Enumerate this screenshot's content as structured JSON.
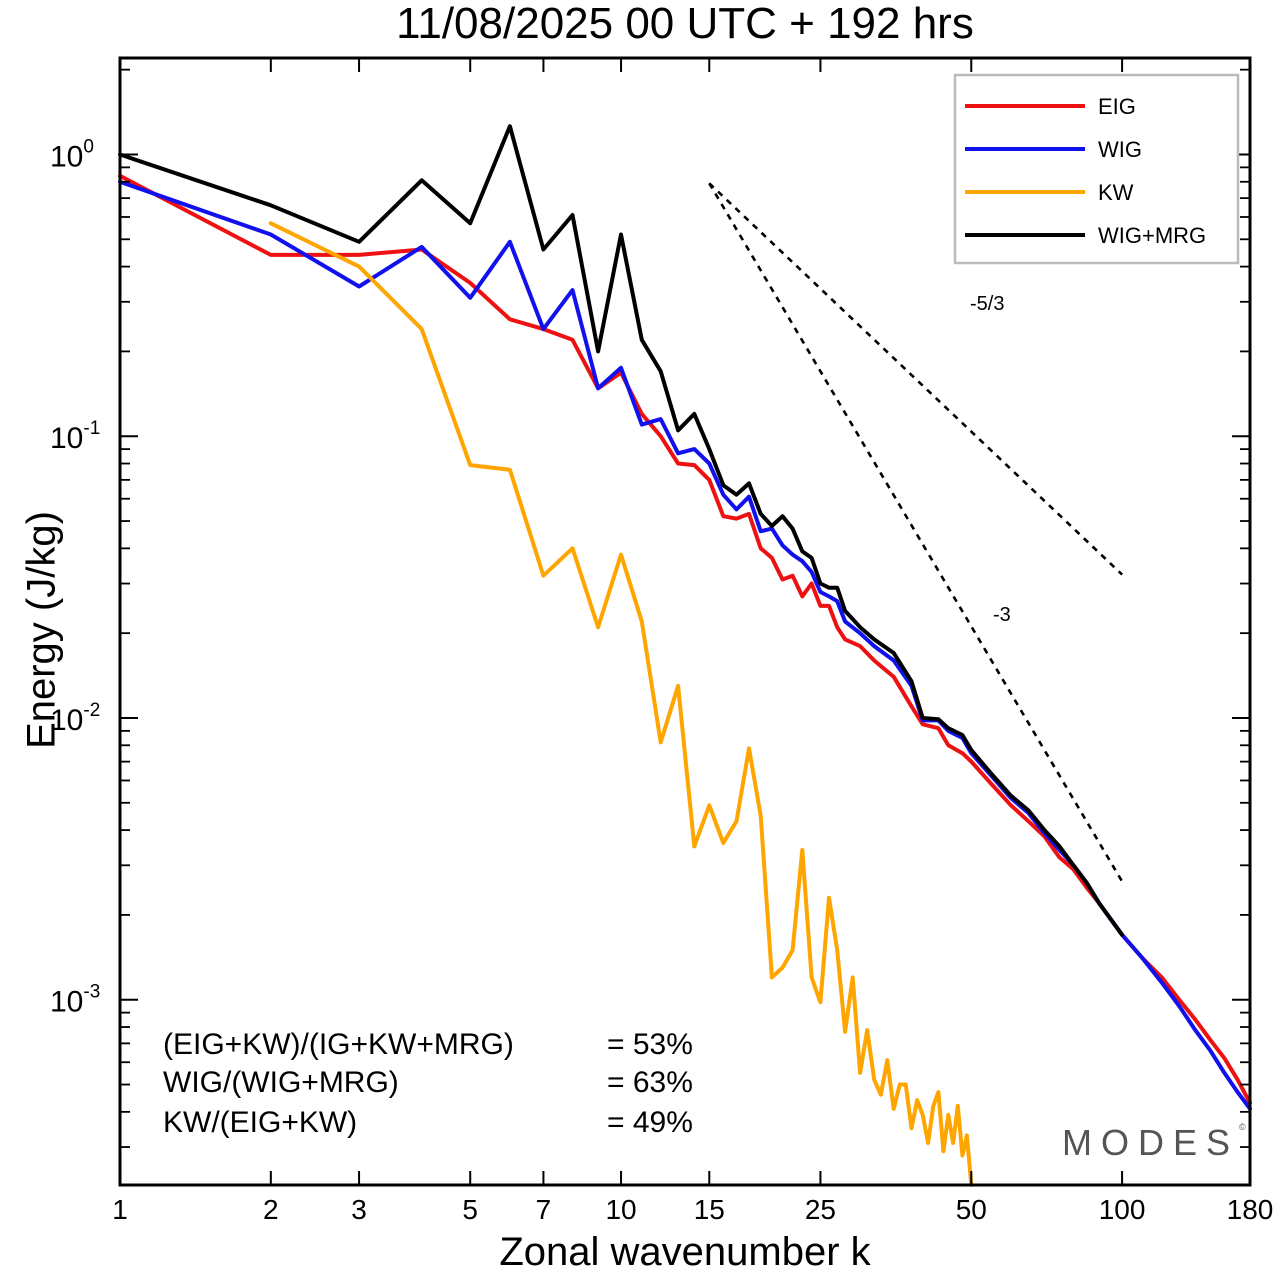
{
  "chart_data": {
    "type": "line",
    "title": "11/08/2025  00 UTC  + 192 hrs",
    "xlabel": "Zonal wavenumber k",
    "ylabel": "Energy (J/kg)",
    "xscale": "log",
    "yscale": "log",
    "xlim": [
      1,
      180
    ],
    "ylim": [
      0.00022,
      2.2
    ],
    "xticks": [
      1,
      2,
      3,
      5,
      7,
      10,
      15,
      25,
      50,
      100,
      180
    ],
    "xtick_labels": [
      "1",
      "2",
      "3",
      "5",
      "7",
      "10",
      "15",
      "25",
      "50",
      "100",
      "180"
    ],
    "yticks": [
      1,
      0.1,
      0.01,
      0.001
    ],
    "ytick_labels": [
      {
        "base": "10",
        "exp": "0"
      },
      {
        "base": "10",
        "exp": "-1"
      },
      {
        "base": "10",
        "exp": "-2"
      },
      {
        "base": "10",
        "exp": "-3"
      }
    ],
    "grid": false,
    "legend_position": "top-right",
    "series": [
      {
        "name": "EIG",
        "color": "#ee1111",
        "x": [
          1,
          2,
          3,
          4,
          5,
          6,
          7,
          8,
          9,
          10,
          11,
          12,
          13,
          14,
          15,
          16,
          17,
          18,
          19,
          20,
          21,
          22,
          23,
          24,
          25,
          26,
          27,
          28,
          30,
          32,
          35,
          38,
          40,
          43,
          45,
          48,
          50,
          55,
          60,
          65,
          70,
          75,
          80,
          85,
          90,
          100,
          110,
          120,
          130,
          140,
          150,
          160,
          170,
          180
        ],
        "values": [
          0.84,
          0.44,
          0.44,
          0.46,
          0.35,
          0.26,
          0.24,
          0.22,
          0.148,
          0.168,
          0.12,
          0.1,
          0.08,
          0.079,
          0.07,
          0.052,
          0.051,
          0.053,
          0.04,
          0.037,
          0.031,
          0.032,
          0.027,
          0.03,
          0.025,
          0.025,
          0.021,
          0.019,
          0.018,
          0.016,
          0.014,
          0.011,
          0.0095,
          0.0092,
          0.008,
          0.0075,
          0.007,
          0.0058,
          0.0049,
          0.0043,
          0.0038,
          0.0032,
          0.0029,
          0.0025,
          0.0022,
          0.0017,
          0.0014,
          0.0012,
          0.001,
          0.00085,
          0.00072,
          0.00062,
          0.00052,
          0.00043
        ]
      },
      {
        "name": "WIG",
        "color": "#1111ee",
        "x": [
          1,
          2,
          3,
          4,
          5,
          6,
          7,
          8,
          9,
          10,
          11,
          12,
          13,
          14,
          15,
          16,
          17,
          18,
          19,
          20,
          21,
          22,
          23,
          24,
          25,
          26,
          27,
          28,
          30,
          32,
          35,
          38,
          40,
          43,
          45,
          48,
          50,
          55,
          60,
          65,
          70,
          75,
          80,
          85,
          90,
          100,
          110,
          120,
          130,
          140,
          150,
          160,
          170,
          180
        ],
        "values": [
          0.8,
          0.52,
          0.34,
          0.47,
          0.31,
          0.49,
          0.24,
          0.33,
          0.148,
          0.175,
          0.11,
          0.115,
          0.087,
          0.09,
          0.08,
          0.062,
          0.055,
          0.061,
          0.046,
          0.047,
          0.041,
          0.038,
          0.036,
          0.033,
          0.028,
          0.027,
          0.026,
          0.022,
          0.02,
          0.018,
          0.016,
          0.013,
          0.0098,
          0.0098,
          0.009,
          0.0085,
          0.0075,
          0.0062,
          0.0052,
          0.0046,
          0.0039,
          0.0034,
          0.003,
          0.0026,
          0.0022,
          0.0017,
          0.0014,
          0.00115,
          0.00095,
          0.00078,
          0.00066,
          0.00055,
          0.00047,
          0.00041
        ]
      },
      {
        "name": "KW",
        "color": "#ffa500",
        "x": [
          2,
          3,
          4,
          5,
          6,
          7,
          8,
          9,
          10,
          11,
          12,
          13,
          14,
          15,
          16,
          17,
          18,
          19,
          20,
          21,
          22,
          23,
          24,
          25,
          26,
          27,
          28,
          29,
          30,
          31,
          32,
          33,
          34,
          35,
          36,
          37,
          38,
          39,
          40,
          41,
          42,
          43,
          44,
          45,
          46,
          47,
          48,
          49,
          50
        ],
        "values": [
          0.57,
          0.4,
          0.24,
          0.079,
          0.076,
          0.032,
          0.04,
          0.021,
          0.038,
          0.022,
          0.0082,
          0.013,
          0.0035,
          0.0049,
          0.0036,
          0.0043,
          0.0078,
          0.0045,
          0.0012,
          0.0013,
          0.0015,
          0.0034,
          0.0012,
          0.00098,
          0.0023,
          0.0015,
          0.00077,
          0.0012,
          0.00055,
          0.00078,
          0.00052,
          0.00046,
          0.00061,
          0.00041,
          0.0005,
          0.0005,
          0.00035,
          0.00044,
          0.00039,
          0.00031,
          0.00042,
          0.00047,
          0.00029,
          0.00039,
          0.00031,
          0.00042,
          0.00028,
          0.00033,
          0.00022
        ]
      },
      {
        "name": "WIG+MRG",
        "color": "#000000",
        "x": [
          1,
          2,
          3,
          4,
          5,
          6,
          7,
          8,
          9,
          10,
          11,
          12,
          13,
          14,
          15,
          16,
          17,
          18,
          19,
          20,
          21,
          22,
          23,
          24,
          25,
          26,
          27,
          28,
          30,
          32,
          35,
          38,
          40,
          43,
          45,
          48,
          50,
          55,
          60,
          65,
          70,
          75,
          80,
          85,
          90,
          100
        ],
        "values": [
          1.0,
          0.66,
          0.49,
          0.81,
          0.57,
          1.26,
          0.46,
          0.61,
          0.2,
          0.52,
          0.22,
          0.17,
          0.105,
          0.12,
          0.09,
          0.067,
          0.062,
          0.068,
          0.053,
          0.048,
          0.052,
          0.047,
          0.039,
          0.037,
          0.03,
          0.029,
          0.029,
          0.024,
          0.021,
          0.019,
          0.017,
          0.0135,
          0.01,
          0.0099,
          0.0092,
          0.0087,
          0.0077,
          0.0063,
          0.0053,
          0.0047,
          0.004,
          0.0035,
          0.003,
          0.0026,
          0.0022,
          0.0017
        ]
      }
    ],
    "reference_slopes": [
      {
        "label": "-5/3",
        "slope": -1.6667,
        "x": [
          15,
          100
        ],
        "y": [
          0.79,
          0.0323
        ]
      },
      {
        "label": "-3",
        "slope": -3,
        "x": [
          15,
          100
        ],
        "y": [
          0.79,
          0.00263
        ]
      }
    ],
    "annotations": [
      {
        "label": "(EIG+KW)/(IG+KW+MRG)",
        "value": "= 53%"
      },
      {
        "label": "WIG/(WIG+MRG)",
        "value": "= 63%"
      },
      {
        "label": "KW/(EIG+KW)",
        "value": "= 49%"
      }
    ],
    "watermark": "MODES",
    "watermark_mark": "©"
  }
}
